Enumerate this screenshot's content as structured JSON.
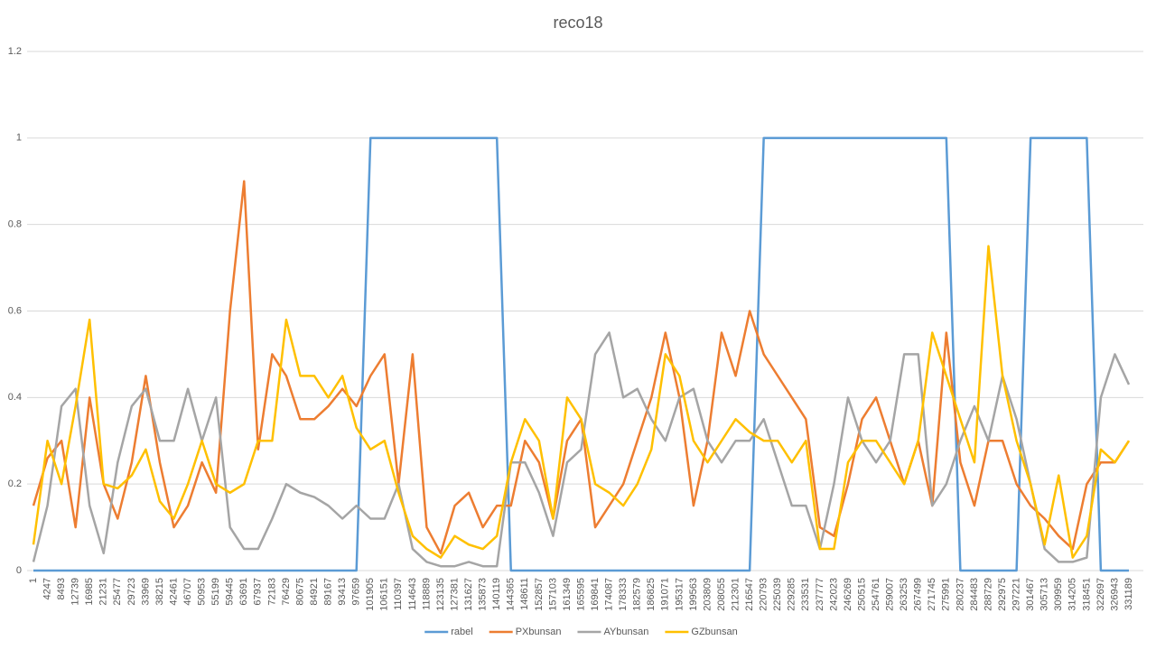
{
  "chart_data": {
    "type": "line",
    "title": "reco18",
    "categories": [
      "1",
      "4247",
      "8493",
      "12739",
      "16985",
      "21231",
      "25477",
      "29723",
      "33969",
      "38215",
      "42461",
      "46707",
      "50953",
      "55199",
      "59445",
      "63691",
      "67937",
      "72183",
      "76429",
      "80675",
      "84921",
      "89167",
      "93413",
      "97659",
      "101905",
      "106151",
      "110397",
      "114643",
      "118889",
      "123135",
      "127381",
      "131627",
      "135873",
      "140119",
      "144365",
      "148611",
      "152857",
      "157103",
      "161349",
      "165595",
      "169841",
      "174087",
      "178333",
      "182579",
      "186825",
      "191071",
      "195317",
      "199563",
      "203809",
      "208055",
      "212301",
      "216547",
      "220793",
      "225039",
      "229285",
      "233531",
      "237777",
      "242023",
      "246269",
      "250515",
      "254761",
      "259007",
      "263253",
      "267499",
      "271745",
      "275991",
      "280237",
      "284483",
      "288729",
      "292975",
      "297221",
      "301467",
      "305713",
      "309959",
      "314205",
      "318451",
      "322697",
      "326943",
      "331189"
    ],
    "series": [
      {
        "name": "rabel",
        "color": "#5b9bd5",
        "values": [
          0,
          0,
          0,
          0,
          0,
          0,
          0,
          0,
          0,
          0,
          0,
          0,
          0,
          0,
          0,
          0,
          0,
          0,
          0,
          0,
          0,
          0,
          0,
          0,
          1,
          1,
          1,
          1,
          1,
          1,
          1,
          1,
          1,
          1,
          0,
          0,
          0,
          0,
          0,
          0,
          0,
          0,
          0,
          0,
          0,
          0,
          0,
          0,
          0,
          0,
          0,
          0,
          1,
          1,
          1,
          1,
          1,
          1,
          1,
          1,
          1,
          1,
          1,
          1,
          1,
          1,
          0,
          0,
          0,
          0,
          0,
          1,
          1,
          1,
          1,
          1,
          0,
          0,
          0
        ]
      },
      {
        "name": "PXbunsan",
        "color": "#ed7d31",
        "values": [
          0.15,
          0.26,
          0.3,
          0.1,
          0.4,
          0.2,
          0.12,
          0.25,
          0.45,
          0.25,
          0.1,
          0.15,
          0.25,
          0.18,
          0.6,
          0.9,
          0.28,
          0.5,
          0.45,
          0.35,
          0.35,
          0.38,
          0.42,
          0.38,
          0.45,
          0.5,
          0.2,
          0.5,
          0.1,
          0.04,
          0.15,
          0.18,
          0.1,
          0.15,
          0.15,
          0.3,
          0.25,
          0.12,
          0.3,
          0.35,
          0.1,
          0.15,
          0.2,
          0.3,
          0.4,
          0.55,
          0.4,
          0.15,
          0.3,
          0.55,
          0.45,
          0.6,
          0.5,
          0.45,
          0.4,
          0.35,
          0.1,
          0.08,
          0.2,
          0.35,
          0.4,
          0.3,
          0.2,
          0.3,
          0.15,
          0.55,
          0.25,
          0.15,
          0.3,
          0.3,
          0.2,
          0.15,
          0.12,
          0.08,
          0.05,
          0.2,
          0.25,
          0.25,
          0.3
        ]
      },
      {
        "name": "AYbunsan",
        "color": "#a5a5a5",
        "values": [
          0.02,
          0.15,
          0.38,
          0.42,
          0.15,
          0.04,
          0.25,
          0.38,
          0.42,
          0.3,
          0.3,
          0.42,
          0.3,
          0.4,
          0.1,
          0.05,
          0.05,
          0.12,
          0.2,
          0.18,
          0.17,
          0.15,
          0.12,
          0.15,
          0.12,
          0.12,
          0.2,
          0.05,
          0.02,
          0.01,
          0.01,
          0.02,
          0.01,
          0.01,
          0.25,
          0.25,
          0.18,
          0.08,
          0.25,
          0.28,
          0.5,
          0.55,
          0.4,
          0.42,
          0.35,
          0.3,
          0.4,
          0.42,
          0.3,
          0.25,
          0.3,
          0.3,
          0.35,
          0.25,
          0.15,
          0.15,
          0.05,
          0.2,
          0.4,
          0.3,
          0.25,
          0.3,
          0.5,
          0.5,
          0.15,
          0.2,
          0.3,
          0.38,
          0.3,
          0.45,
          0.35,
          0.2,
          0.05,
          0.02,
          0.02,
          0.03,
          0.4,
          0.5,
          0.43
        ]
      },
      {
        "name": "GZbunsan",
        "color": "#ffc000",
        "values": [
          0.06,
          0.3,
          0.2,
          0.38,
          0.58,
          0.2,
          0.19,
          0.22,
          0.28,
          0.16,
          0.12,
          0.2,
          0.3,
          0.2,
          0.18,
          0.2,
          0.3,
          0.3,
          0.58,
          0.45,
          0.45,
          0.4,
          0.45,
          0.33,
          0.28,
          0.3,
          0.18,
          0.08,
          0.05,
          0.03,
          0.08,
          0.06,
          0.05,
          0.08,
          0.25,
          0.35,
          0.3,
          0.12,
          0.4,
          0.35,
          0.2,
          0.18,
          0.15,
          0.2,
          0.28,
          0.5,
          0.45,
          0.3,
          0.25,
          0.3,
          0.35,
          0.32,
          0.3,
          0.3,
          0.25,
          0.3,
          0.05,
          0.05,
          0.25,
          0.3,
          0.3,
          0.25,
          0.2,
          0.3,
          0.55,
          0.45,
          0.35,
          0.25,
          0.75,
          0.45,
          0.3,
          0.2,
          0.06,
          0.22,
          0.03,
          0.08,
          0.28,
          0.25,
          0.3
        ]
      }
    ],
    "ylim": [
      0,
      1.2
    ],
    "yticks": [
      0,
      0.2,
      0.4,
      0.6,
      0.8,
      1,
      1.2
    ],
    "grid": true,
    "legend": "bottom"
  }
}
